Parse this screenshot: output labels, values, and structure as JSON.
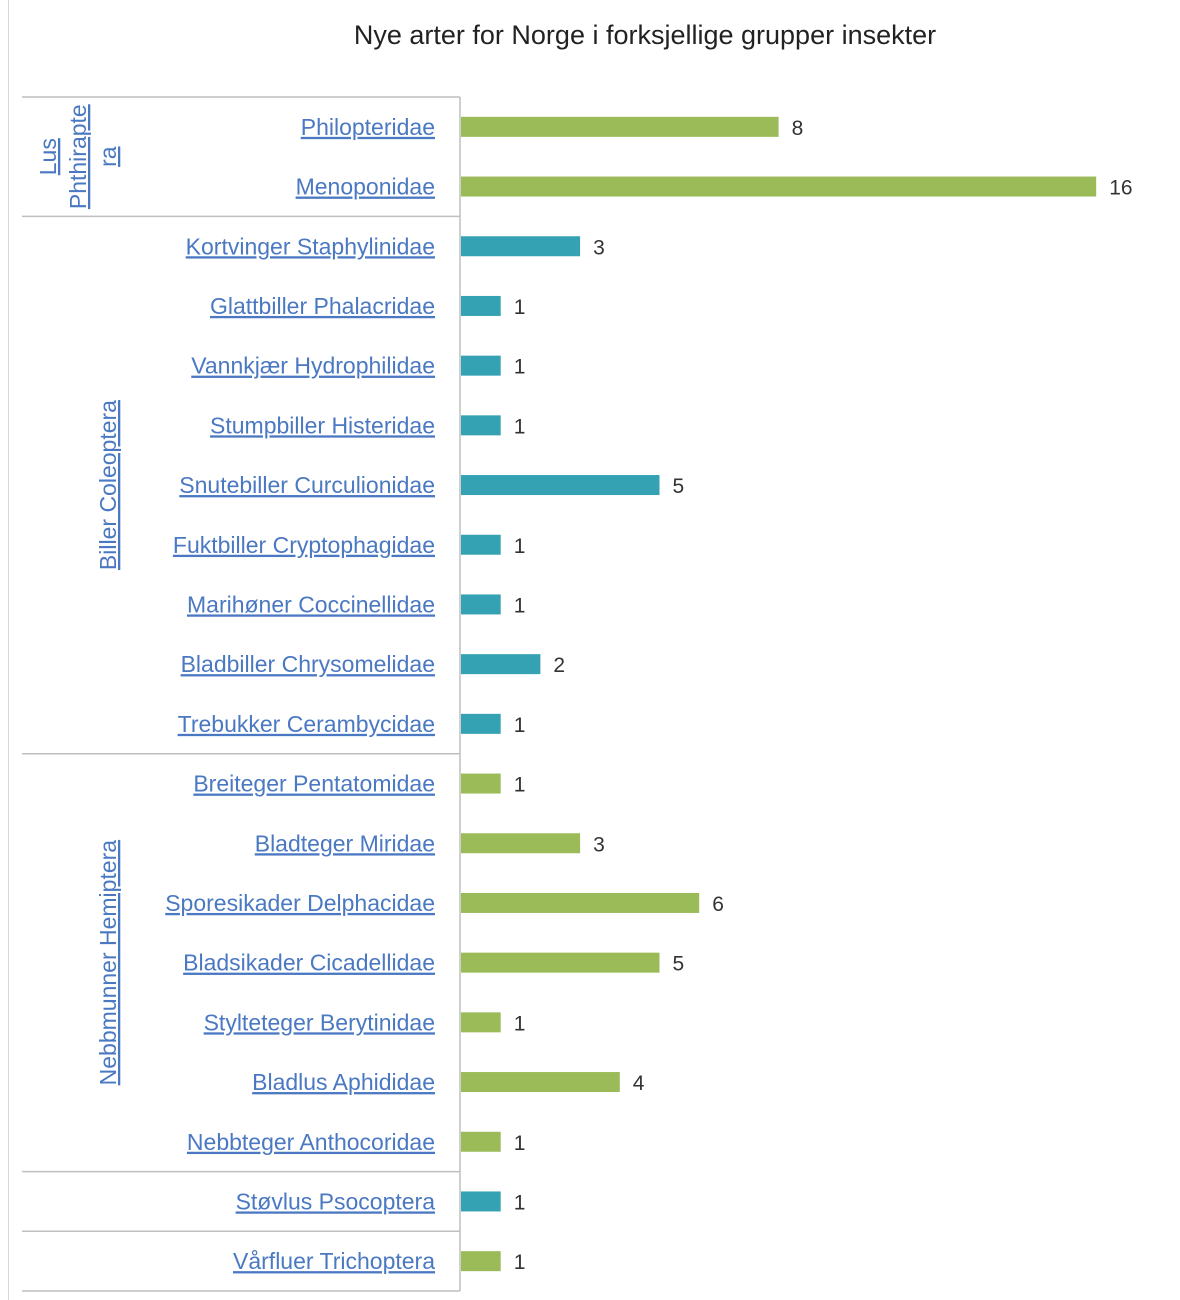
{
  "chart_data": {
    "type": "bar",
    "orientation": "horizontal",
    "title": "Nye arter for Norge i forksjellige grupper insekter",
    "xlim": [
      0,
      16.6
    ],
    "grid": false,
    "legend": "none",
    "colors": {
      "green": "#9bbb59",
      "teal": "#35a2b4"
    },
    "groups": [
      {
        "label_lines": [
          "Lus",
          "Phthirapte",
          "ra"
        ],
        "categories": [
          "Philopteridae",
          "Menoponidae"
        ],
        "values": [
          8,
          16
        ],
        "color": "#9bbb59"
      },
      {
        "label_lines": [
          "Biller   Coleoptera"
        ],
        "categories": [
          "Kortvinger Staphylinidae",
          "Glattbiller Phalacridae",
          "Vannkjær Hydrophilidae",
          "Stumpbiller Histeridae",
          "Snutebiller Curculionidae",
          "Fuktbiller Cryptophagidae",
          "Marihøner Coccinellidae",
          "Bladbiller Chrysomelidae",
          "Trebukker Cerambycidae"
        ],
        "values": [
          3,
          1,
          1,
          1,
          5,
          1,
          1,
          2,
          1
        ],
        "color": "#35a2b4"
      },
      {
        "label_lines": [
          "Nebbmunner   Hemiptera"
        ],
        "categories": [
          "Breiteger Pentatomidae",
          "Bladteger Miridae",
          "Sporesikader Delphacidae",
          "Bladsikader Cicadellidae",
          "Stylteteger Berytinidae",
          "Bladlus Aphididae",
          "Nebbteger Anthocoridae"
        ],
        "values": [
          1,
          3,
          6,
          5,
          1,
          4,
          1
        ],
        "color": "#9bbb59"
      },
      {
        "label_lines": [],
        "categories": [
          "Støvlus Psocoptera"
        ],
        "values": [
          1
        ],
        "color": "#35a2b4"
      },
      {
        "label_lines": [],
        "categories": [
          "Vårfluer Trichoptera"
        ],
        "values": [
          1
        ],
        "color": "#9bbb59"
      }
    ]
  }
}
